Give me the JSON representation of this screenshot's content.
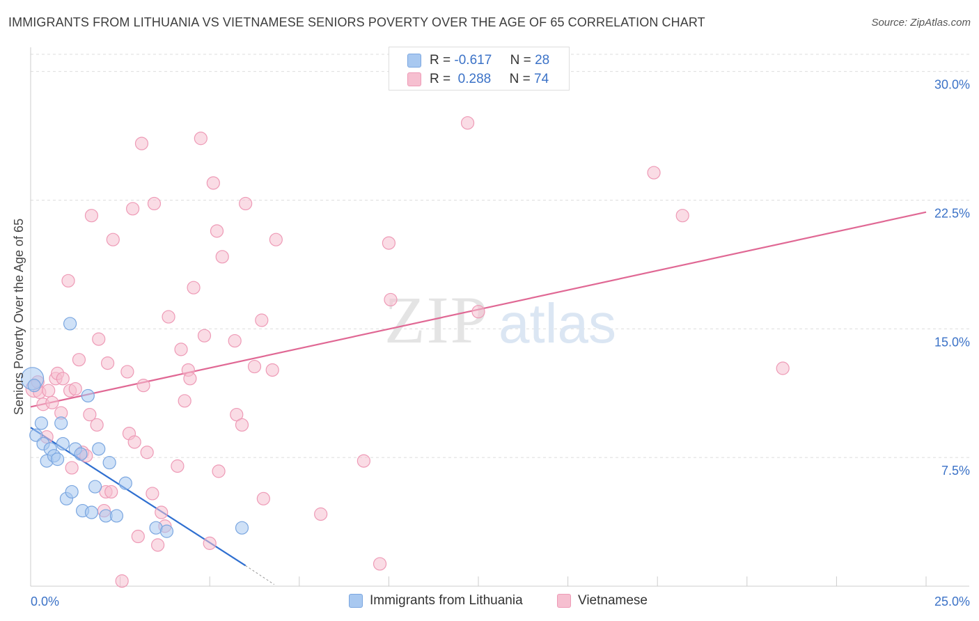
{
  "title": "IMMIGRANTS FROM LITHUANIA VS VIETNAMESE SENIORS POVERTY OVER THE AGE OF 65 CORRELATION CHART",
  "source": "Source: ZipAtlas.com",
  "watermark": {
    "zip": "ZIP",
    "atlas": "atlas"
  },
  "stats": {
    "r_label": "R =",
    "n_label": "N =",
    "series1": {
      "r": "-0.617",
      "n": "28"
    },
    "series2": {
      "r": "0.288",
      "n": "74"
    }
  },
  "colors": {
    "blue_fill": "#a8c8f0",
    "blue_stroke": "#7aa6e0",
    "blue_line": "#2f6fd0",
    "pink_fill": "#f6bfd0",
    "pink_stroke": "#ee9ab6",
    "pink_line": "#e06894",
    "axis_label": "#3b72c7",
    "grid": "#dddddd"
  },
  "chart_data": {
    "type": "scatter",
    "title": "IMMIGRANTS FROM LITHUANIA VS VIETNAMESE SENIORS POVERTY OVER THE AGE OF 65 CORRELATION CHART",
    "xlabel": "",
    "ylabel": "Seniors Poverty Over the Age of 65",
    "xlim": [
      0,
      25
    ],
    "ylim": [
      0,
      31
    ],
    "x_tick_labels": [
      {
        "value": 0,
        "label": "0.0%"
      },
      {
        "value": 25,
        "label": "25.0%"
      }
    ],
    "y_ticks": [
      {
        "value": 7.5,
        "label": "7.5%"
      },
      {
        "value": 15,
        "label": "15.0%"
      },
      {
        "value": 22.5,
        "label": "22.5%"
      },
      {
        "value": 30,
        "label": "30.0%"
      }
    ],
    "x_minor_ticks": [
      2.5,
      5,
      7.5,
      10,
      12.5,
      15,
      17.5,
      20,
      22.5,
      25
    ],
    "series": [
      {
        "name": "Immigrants from Lithuania",
        "color": "blue",
        "points": [
          [
            0.05,
            12.1,
            16
          ],
          [
            0.1,
            11.7,
            9
          ],
          [
            0.15,
            8.8,
            9
          ],
          [
            0.3,
            9.5,
            9
          ],
          [
            0.35,
            8.3,
            9
          ],
          [
            0.45,
            7.3,
            9
          ],
          [
            0.55,
            8.0,
            9
          ],
          [
            0.65,
            7.6,
            9
          ],
          [
            0.75,
            7.4,
            9
          ],
          [
            0.85,
            9.5,
            9
          ],
          [
            0.9,
            8.3,
            9
          ],
          [
            1.0,
            5.1,
            9
          ],
          [
            1.1,
            15.3,
            9
          ],
          [
            1.15,
            5.5,
            9
          ],
          [
            1.25,
            8.0,
            9
          ],
          [
            1.4,
            7.7,
            9
          ],
          [
            1.45,
            4.4,
            9
          ],
          [
            1.6,
            11.1,
            9
          ],
          [
            1.7,
            4.3,
            9
          ],
          [
            1.8,
            5.8,
            9
          ],
          [
            1.9,
            8.0,
            9
          ],
          [
            2.1,
            4.1,
            9
          ],
          [
            2.2,
            7.2,
            9
          ],
          [
            2.4,
            4.1,
            9
          ],
          [
            2.65,
            6.0,
            9
          ],
          [
            3.5,
            3.4,
            9
          ],
          [
            3.8,
            3.2,
            9
          ],
          [
            5.9,
            3.4,
            9
          ]
        ],
        "trend": {
          "x": [
            0.0,
            6.0
          ],
          "y": [
            9.25,
            1.2
          ],
          "dashed_to": {
            "x": 6.8,
            "y": 0.1
          }
        }
      },
      {
        "name": "Vietnamese",
        "color": "pink",
        "points": [
          [
            0.1,
            11.5,
            12
          ],
          [
            0.25,
            11.3,
            9
          ],
          [
            0.35,
            10.6,
            9
          ],
          [
            0.45,
            8.7,
            9
          ],
          [
            0.5,
            11.4,
            9
          ],
          [
            0.6,
            10.7,
            9
          ],
          [
            0.7,
            12.1,
            9
          ],
          [
            0.75,
            12.4,
            9
          ],
          [
            0.85,
            10.1,
            9
          ],
          [
            0.9,
            12.1,
            9
          ],
          [
            1.05,
            17.8,
            9
          ],
          [
            1.1,
            11.4,
            9
          ],
          [
            1.15,
            6.9,
            9
          ],
          [
            1.25,
            11.5,
            9
          ],
          [
            1.35,
            13.2,
            9
          ],
          [
            1.45,
            7.8,
            9
          ],
          [
            1.55,
            7.6,
            9
          ],
          [
            1.65,
            10.0,
            9
          ],
          [
            1.7,
            21.6,
            9
          ],
          [
            1.85,
            9.4,
            9
          ],
          [
            1.9,
            14.4,
            9
          ],
          [
            2.05,
            4.4,
            9
          ],
          [
            2.1,
            5.5,
            9
          ],
          [
            2.15,
            13.0,
            9
          ],
          [
            2.25,
            5.5,
            9
          ],
          [
            2.3,
            20.2,
            9
          ],
          [
            2.55,
            0.3,
            9
          ],
          [
            2.7,
            12.5,
            9
          ],
          [
            2.75,
            8.9,
            9
          ],
          [
            2.85,
            22.0,
            9
          ],
          [
            2.9,
            8.4,
            9
          ],
          [
            3.0,
            2.9,
            9
          ],
          [
            3.1,
            25.8,
            9
          ],
          [
            3.15,
            11.7,
            9
          ],
          [
            3.25,
            7.8,
            9
          ],
          [
            3.4,
            5.4,
            9
          ],
          [
            3.45,
            22.3,
            9
          ],
          [
            3.55,
            2.4,
            9
          ],
          [
            3.65,
            4.3,
            9
          ],
          [
            3.75,
            3.5,
            9
          ],
          [
            3.85,
            15.7,
            9
          ],
          [
            4.1,
            7.0,
            9
          ],
          [
            4.2,
            13.8,
            9
          ],
          [
            4.3,
            10.8,
            9
          ],
          [
            4.4,
            12.6,
            9
          ],
          [
            4.45,
            12.1,
            9
          ],
          [
            4.55,
            17.4,
            9
          ],
          [
            4.75,
            26.1,
            9
          ],
          [
            4.85,
            14.6,
            9
          ],
          [
            5.0,
            2.5,
            9
          ],
          [
            5.1,
            23.5,
            9
          ],
          [
            5.2,
            20.7,
            9
          ],
          [
            5.25,
            6.7,
            9
          ],
          [
            5.35,
            19.2,
            9
          ],
          [
            5.7,
            14.3,
            9
          ],
          [
            5.75,
            10.0,
            9
          ],
          [
            5.9,
            9.4,
            9
          ],
          [
            6.0,
            22.3,
            9
          ],
          [
            6.25,
            12.8,
            9
          ],
          [
            6.45,
            15.5,
            9
          ],
          [
            6.5,
            5.1,
            9
          ],
          [
            6.75,
            12.6,
            9
          ],
          [
            6.85,
            20.2,
            9
          ],
          [
            8.1,
            4.2,
            9
          ],
          [
            9.3,
            7.3,
            9
          ],
          [
            9.75,
            1.3,
            9
          ],
          [
            10.0,
            20.0,
            9
          ],
          [
            10.05,
            16.7,
            9
          ],
          [
            12.2,
            27.0,
            9
          ],
          [
            12.5,
            16.0,
            9
          ],
          [
            17.4,
            24.1,
            9
          ],
          [
            18.2,
            21.6,
            9
          ],
          [
            21.0,
            12.7,
            9
          ],
          [
            0.2,
            11.9,
            9
          ]
        ],
        "trend": {
          "x": [
            0.0,
            25.0
          ],
          "y": [
            10.45,
            21.8
          ]
        }
      }
    ],
    "legend": [
      "Immigrants from Lithuania",
      "Vietnamese"
    ]
  }
}
